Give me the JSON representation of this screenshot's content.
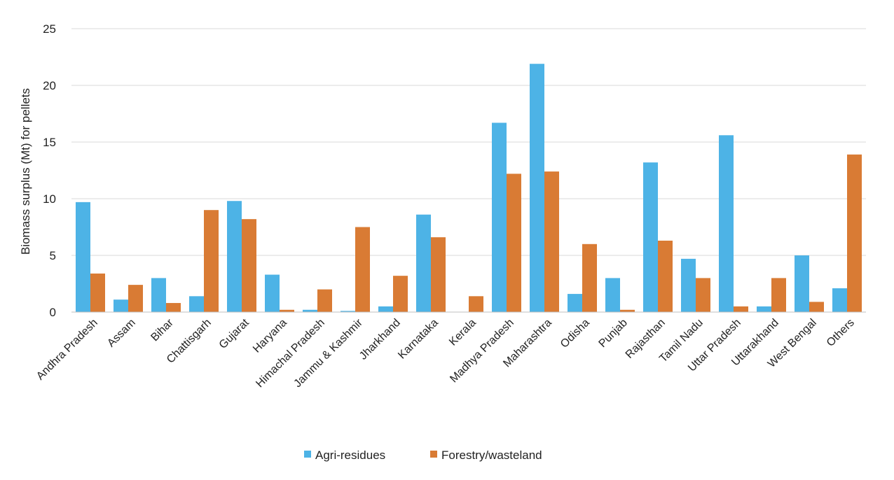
{
  "chart_data": {
    "type": "bar",
    "title": "",
    "xlabel": "",
    "ylabel": "Biomass surplus (Mt) for pellets",
    "ylim": [
      0,
      25
    ],
    "yticks": [
      0,
      5,
      10,
      15,
      20,
      25
    ],
    "grid": true,
    "legend_position": "bottom",
    "categories": [
      "Andhra Pradesh",
      "Assam",
      "Bihar",
      "Chattisgarh",
      "Gujarat",
      "Haryana",
      "Himachal Pradesh",
      "Jammu & Kashmir",
      "Jharkhand",
      "Karnataka",
      "Kerala",
      "Madhya Pradesh",
      "Maharashtra",
      "Odisha",
      "Punjab",
      "Rajasthan",
      "Tamil Nadu",
      "Uttar Pradesh",
      "Uttarakhand",
      "West Bengal",
      "Others"
    ],
    "series": [
      {
        "name": "Agri-residues",
        "color": "#4DB3E6",
        "values": [
          9.7,
          1.1,
          3.0,
          1.4,
          9.8,
          3.3,
          0.2,
          0.1,
          0.5,
          8.6,
          0.0,
          16.7,
          21.9,
          1.6,
          3.0,
          13.2,
          4.7,
          15.6,
          0.5,
          5.0,
          2.1
        ]
      },
      {
        "name": "Forestry/wasteland",
        "color": "#D97B34",
        "values": [
          3.4,
          2.4,
          0.8,
          9.0,
          8.2,
          0.2,
          2.0,
          7.5,
          3.2,
          6.6,
          1.4,
          12.2,
          12.4,
          6.0,
          0.2,
          6.3,
          3.0,
          0.5,
          3.0,
          0.9,
          13.9
        ]
      }
    ]
  }
}
